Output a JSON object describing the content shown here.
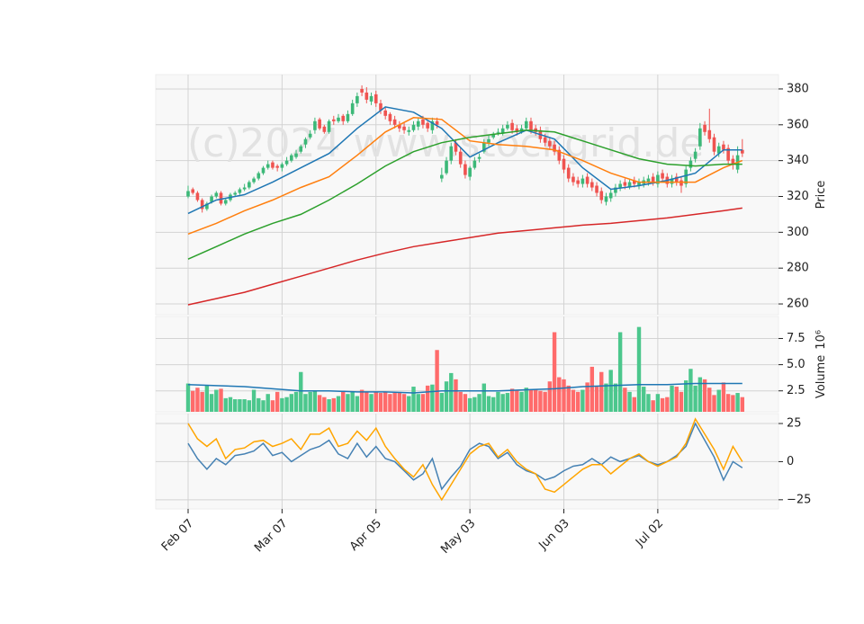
{
  "chart_data": [
    {
      "type": "candlestick",
      "ylabel": "Price",
      "watermark": "(c)2024 www.stockgrid.de",
      "up_color": "#3cb878",
      "down_color": "#ef5350",
      "open": [
        320,
        324,
        322,
        318,
        313,
        317,
        320,
        322,
        316,
        318,
        321,
        322,
        324,
        325,
        328,
        330,
        333,
        336,
        339,
        337,
        336,
        338,
        340,
        342,
        345,
        349,
        353,
        357,
        363,
        359,
        356,
        363,
        362,
        365,
        362,
        366,
        372,
        380,
        378,
        373,
        377,
        372,
        368,
        366,
        363,
        360,
        359,
        356,
        357,
        359,
        363,
        361,
        357,
        362,
        330,
        333,
        340,
        350,
        345,
        338,
        331,
        336,
        341,
        345,
        350,
        353,
        356,
        355,
        358,
        361,
        358,
        356,
        358,
        362,
        358,
        357,
        353,
        351,
        349,
        346,
        341,
        336,
        331,
        329,
        327,
        331,
        328,
        326,
        323,
        317,
        319,
        322,
        325,
        328,
        325,
        329,
        326,
        327,
        328,
        331,
        327,
        333,
        331,
        327,
        331,
        329,
        327,
        336,
        341,
        348,
        360,
        357,
        353,
        344,
        349,
        347,
        341,
        335,
        346
      ],
      "high": [
        326,
        325,
        323,
        319,
        317,
        321,
        323,
        323,
        319,
        322,
        323,
        325,
        327,
        329,
        331,
        334,
        337,
        340,
        340,
        338,
        339,
        342,
        344,
        346,
        349,
        353,
        357,
        364,
        364,
        360,
        363,
        365,
        366,
        366,
        368,
        374,
        378,
        382,
        381,
        378,
        379,
        374,
        370,
        367,
        365,
        362,
        361,
        359,
        362,
        364,
        365,
        362,
        364,
        364,
        336,
        342,
        350,
        352,
        347,
        340,
        337,
        342,
        344,
        352,
        354,
        356,
        358,
        360,
        362,
        363,
        360,
        360,
        364,
        364,
        360,
        359,
        355,
        353,
        351,
        348,
        343,
        338,
        333,
        331,
        332,
        333,
        330,
        328,
        325,
        322,
        324,
        327,
        329,
        330,
        330,
        331,
        330,
        331,
        332,
        333,
        334,
        335,
        333,
        332,
        333,
        331,
        337,
        342,
        347,
        361,
        362,
        369,
        355,
        350,
        351,
        349,
        343,
        348,
        352
      ],
      "low": [
        319,
        321,
        317,
        311,
        312,
        316,
        319,
        315,
        315,
        317,
        320,
        321,
        323,
        324,
        327,
        329,
        332,
        335,
        335,
        334,
        334,
        337,
        339,
        341,
        344,
        347,
        352,
        355,
        357,
        355,
        355,
        360,
        361,
        360,
        361,
        365,
        370,
        376,
        372,
        371,
        370,
        366,
        363,
        360,
        358,
        356,
        355,
        354,
        356,
        357,
        358,
        356,
        355,
        358,
        328,
        332,
        338,
        343,
        336,
        330,
        329,
        335,
        339,
        344,
        348,
        352,
        354,
        354,
        357,
        355,
        354,
        355,
        357,
        355,
        354,
        350,
        348,
        346,
        343,
        338,
        333,
        328,
        326,
        325,
        325,
        325,
        323,
        320,
        316,
        315,
        317,
        320,
        323,
        324,
        324,
        325,
        324,
        325,
        326,
        326,
        325,
        328,
        325,
        325,
        326,
        322,
        325,
        334,
        339,
        346,
        354,
        350,
        343,
        342,
        344,
        338,
        335,
        333,
        342
      ],
      "close": [
        323,
        322,
        318,
        313,
        316,
        320,
        322,
        316,
        318,
        321,
        322,
        324,
        325,
        328,
        330,
        333,
        336,
        338,
        336,
        336,
        338,
        340,
        343,
        344,
        348,
        352,
        355,
        362,
        358,
        356,
        362,
        362,
        364,
        362,
        366,
        372,
        376,
        378,
        374,
        376,
        372,
        368,
        365,
        362,
        360,
        358,
        357,
        357,
        360,
        362,
        360,
        358,
        362,
        360,
        332,
        340,
        348,
        345,
        338,
        332,
        336,
        340,
        342,
        350,
        352,
        355,
        356,
        358,
        360,
        357,
        356,
        358,
        362,
        357,
        356,
        352,
        350,
        348,
        345,
        340,
        335,
        330,
        328,
        327,
        330,
        327,
        325,
        322,
        318,
        320,
        322,
        325,
        327,
        326,
        328,
        327,
        328,
        329,
        330,
        328,
        332,
        330,
        327,
        330,
        328,
        326,
        335,
        340,
        345,
        358,
        356,
        352,
        345,
        348,
        346,
        340,
        338,
        343,
        344
      ],
      "overlays": [
        {
          "color": "#1f77b4",
          "x": [
            0,
            6,
            12,
            18,
            24,
            30,
            36,
            42,
            48,
            54,
            60,
            66,
            72,
            78,
            84,
            90,
            96,
            102,
            108,
            114,
            118
          ],
          "values": [
            310.5,
            318,
            321,
            328,
            336,
            344,
            358,
            370,
            367,
            358,
            342,
            350,
            357,
            352,
            336,
            324,
            326,
            329,
            333,
            346,
            346
          ]
        },
        {
          "color": "#ff7f0e",
          "x": [
            0,
            6,
            12,
            18,
            24,
            30,
            36,
            42,
            48,
            54,
            60,
            66,
            72,
            78,
            84,
            90,
            96,
            102,
            108,
            114,
            118
          ],
          "values": [
            299,
            305,
            312,
            318,
            325,
            331,
            343,
            356,
            364,
            363,
            351,
            349,
            348,
            346,
            340,
            333,
            328,
            328,
            328,
            336,
            340
          ]
        },
        {
          "color": "#2ca02c",
          "x": [
            0,
            6,
            12,
            18,
            24,
            30,
            36,
            42,
            48,
            54,
            60,
            66,
            72,
            78,
            84,
            90,
            96,
            102,
            108,
            114,
            118
          ],
          "values": [
            285,
            292,
            299,
            305,
            310,
            318,
            327,
            337,
            345,
            350,
            353,
            355,
            357,
            356,
            351,
            346,
            341,
            338,
            337,
            338,
            338
          ]
        },
        {
          "color": "#d62728",
          "x": [
            0,
            6,
            12,
            18,
            24,
            30,
            36,
            42,
            48,
            54,
            60,
            66,
            72,
            78,
            84,
            90,
            96,
            102,
            108,
            114,
            118
          ],
          "values": [
            259.5,
            263,
            266.5,
            271,
            275.5,
            280,
            284.5,
            288.5,
            292,
            294.5,
            297,
            299.5,
            301,
            302.5,
            304,
            305,
            306.5,
            308,
            310,
            312,
            313.5
          ]
        }
      ],
      "xlim": [
        -6.9,
        125.7
      ],
      "ylim": [
        254,
        388
      ],
      "yticks": [
        260,
        280,
        300,
        320,
        340,
        360,
        380
      ],
      "grid": true
    },
    {
      "type": "bar",
      "ylabel": "Volume",
      "ylabel_unit": "10⁶",
      "up_color": "#4cc78d",
      "down_color": "#ff6b6b",
      "values": [
        3.2,
        2.5,
        2.8,
        2.4,
        3.0,
        2.2,
        2.6,
        2.7,
        1.8,
        1.9,
        1.7,
        1.7,
        1.7,
        1.6,
        2.6,
        1.8,
        1.6,
        2.2,
        1.6,
        2.4,
        1.8,
        1.9,
        2.2,
        2.4,
        4.3,
        2.2,
        2.4,
        2.5,
        2.1,
        1.9,
        1.7,
        1.8,
        2.0,
        2.5,
        2.2,
        2.4,
        2.0,
        2.6,
        2.4,
        2.2,
        2.4,
        2.3,
        2.4,
        2.2,
        2.3,
        2.3,
        2.2,
        2.0,
        2.9,
        2.2,
        2.2,
        3.0,
        3.1,
        6.4,
        2.3,
        3.4,
        4.2,
        3.6,
        2.4,
        2.2,
        1.8,
        1.9,
        2.2,
        3.2,
        2.0,
        1.9,
        2.4,
        2.2,
        2.3,
        2.7,
        2.6,
        2.4,
        2.8,
        2.6,
        2.6,
        2.5,
        2.4,
        3.4,
        8.1,
        3.8,
        3.6,
        3.0,
        2.6,
        2.4,
        2.6,
        3.3,
        4.8,
        2.9,
        4.3,
        3.2,
        4.5,
        3.2,
        8.1,
        2.8,
        2.4,
        1.9,
        8.6,
        2.9,
        2.2,
        1.6,
        2.2,
        1.8,
        1.9,
        3.0,
        2.9,
        2.4,
        3.5,
        4.6,
        3.0,
        3.8,
        3.6,
        2.8,
        2.1,
        2.6,
        3.3,
        2.2,
        2.1,
        2.3,
        1.9
      ],
      "overlays": [
        {
          "color": "#1f77b4",
          "x": [
            0,
            6,
            12,
            18,
            24,
            30,
            36,
            42,
            48,
            54,
            60,
            66,
            72,
            78,
            84,
            90,
            96,
            102,
            108,
            114,
            118
          ],
          "values": [
            3.1,
            3.0,
            2.9,
            2.7,
            2.5,
            2.5,
            2.4,
            2.4,
            2.3,
            2.5,
            2.5,
            2.5,
            2.6,
            2.7,
            2.9,
            3.0,
            3.1,
            3.1,
            3.2,
            3.2,
            3.2
          ]
        }
      ],
      "xlim": [
        -6.9,
        125.7
      ],
      "ylim": [
        0.5,
        9.6
      ],
      "yticks": [
        2.5,
        {
          "value": 5,
          "label": "5.0"
        },
        7.5
      ],
      "grid": true
    },
    {
      "type": "line",
      "series": [
        {
          "color": "#4682b4",
          "x": [
            0,
            2,
            4,
            6,
            8,
            10,
            12,
            14,
            16,
            18,
            20,
            22,
            24,
            26,
            28,
            30,
            32,
            34,
            36,
            38,
            40,
            42,
            44,
            46,
            48,
            50,
            52,
            54,
            56,
            58,
            60,
            62,
            64,
            66,
            68,
            70,
            72,
            74,
            76,
            78,
            80,
            82,
            84,
            86,
            88,
            90,
            92,
            94,
            96,
            98,
            100,
            102,
            104,
            106,
            108,
            110,
            112,
            114,
            116,
            118
          ],
          "values": [
            12,
            2,
            -5,
            2,
            -2,
            4,
            5,
            7,
            12,
            4,
            6,
            0,
            4,
            8,
            10,
            14,
            5,
            2,
            12,
            3,
            10,
            2,
            0,
            -6,
            -12,
            -8,
            2,
            -18,
            -10,
            -3,
            8,
            12,
            10,
            2,
            6,
            -2,
            -6,
            -8,
            -12,
            -10,
            -6,
            -3,
            -2,
            2,
            -2,
            3,
            0,
            2,
            4,
            0,
            -2,
            0,
            4,
            10,
            25,
            14,
            3,
            -12,
            0,
            -4
          ]
        },
        {
          "color": "#ffa500",
          "x": [
            0,
            2,
            4,
            6,
            8,
            10,
            12,
            14,
            16,
            18,
            20,
            22,
            24,
            26,
            28,
            30,
            32,
            34,
            36,
            38,
            40,
            42,
            44,
            46,
            48,
            50,
            52,
            54,
            56,
            58,
            60,
            62,
            64,
            66,
            68,
            70,
            72,
            74,
            76,
            78,
            80,
            82,
            84,
            86,
            88,
            90,
            92,
            94,
            96,
            98,
            100,
            102,
            104,
            106,
            108,
            110,
            112,
            114,
            116,
            118
          ],
          "values": [
            25,
            15,
            10,
            15,
            2,
            8,
            9,
            13,
            14,
            10,
            12,
            15,
            8,
            18,
            18,
            22,
            10,
            12,
            20,
            14,
            22,
            10,
            2,
            -5,
            -10,
            -2,
            -15,
            -25,
            -15,
            -5,
            5,
            10,
            12,
            3,
            8,
            0,
            -5,
            -8,
            -18,
            -20,
            -15,
            -10,
            -5,
            -2,
            -2,
            -8,
            -3,
            2,
            5,
            0,
            -3,
            0,
            3,
            12,
            28,
            18,
            8,
            -5,
            10,
            0
          ]
        }
      ],
      "xlim": [
        -6.9,
        125.7
      ],
      "ylim": [
        -31,
        31.5
      ],
      "yticks": [
        {
          "value": -25,
          "label": "−25"
        },
        0,
        25
      ],
      "xticks": [
        {
          "value": 0,
          "label": "Feb 07"
        },
        {
          "value": 20,
          "label": "Mar 07"
        },
        {
          "value": 40,
          "label": "Apr 05"
        },
        {
          "value": 60,
          "label": "May 03"
        },
        {
          "value": 80,
          "label": "Jun 03"
        },
        {
          "value": 100,
          "label": "Jul 02"
        }
      ],
      "grid": true
    }
  ]
}
